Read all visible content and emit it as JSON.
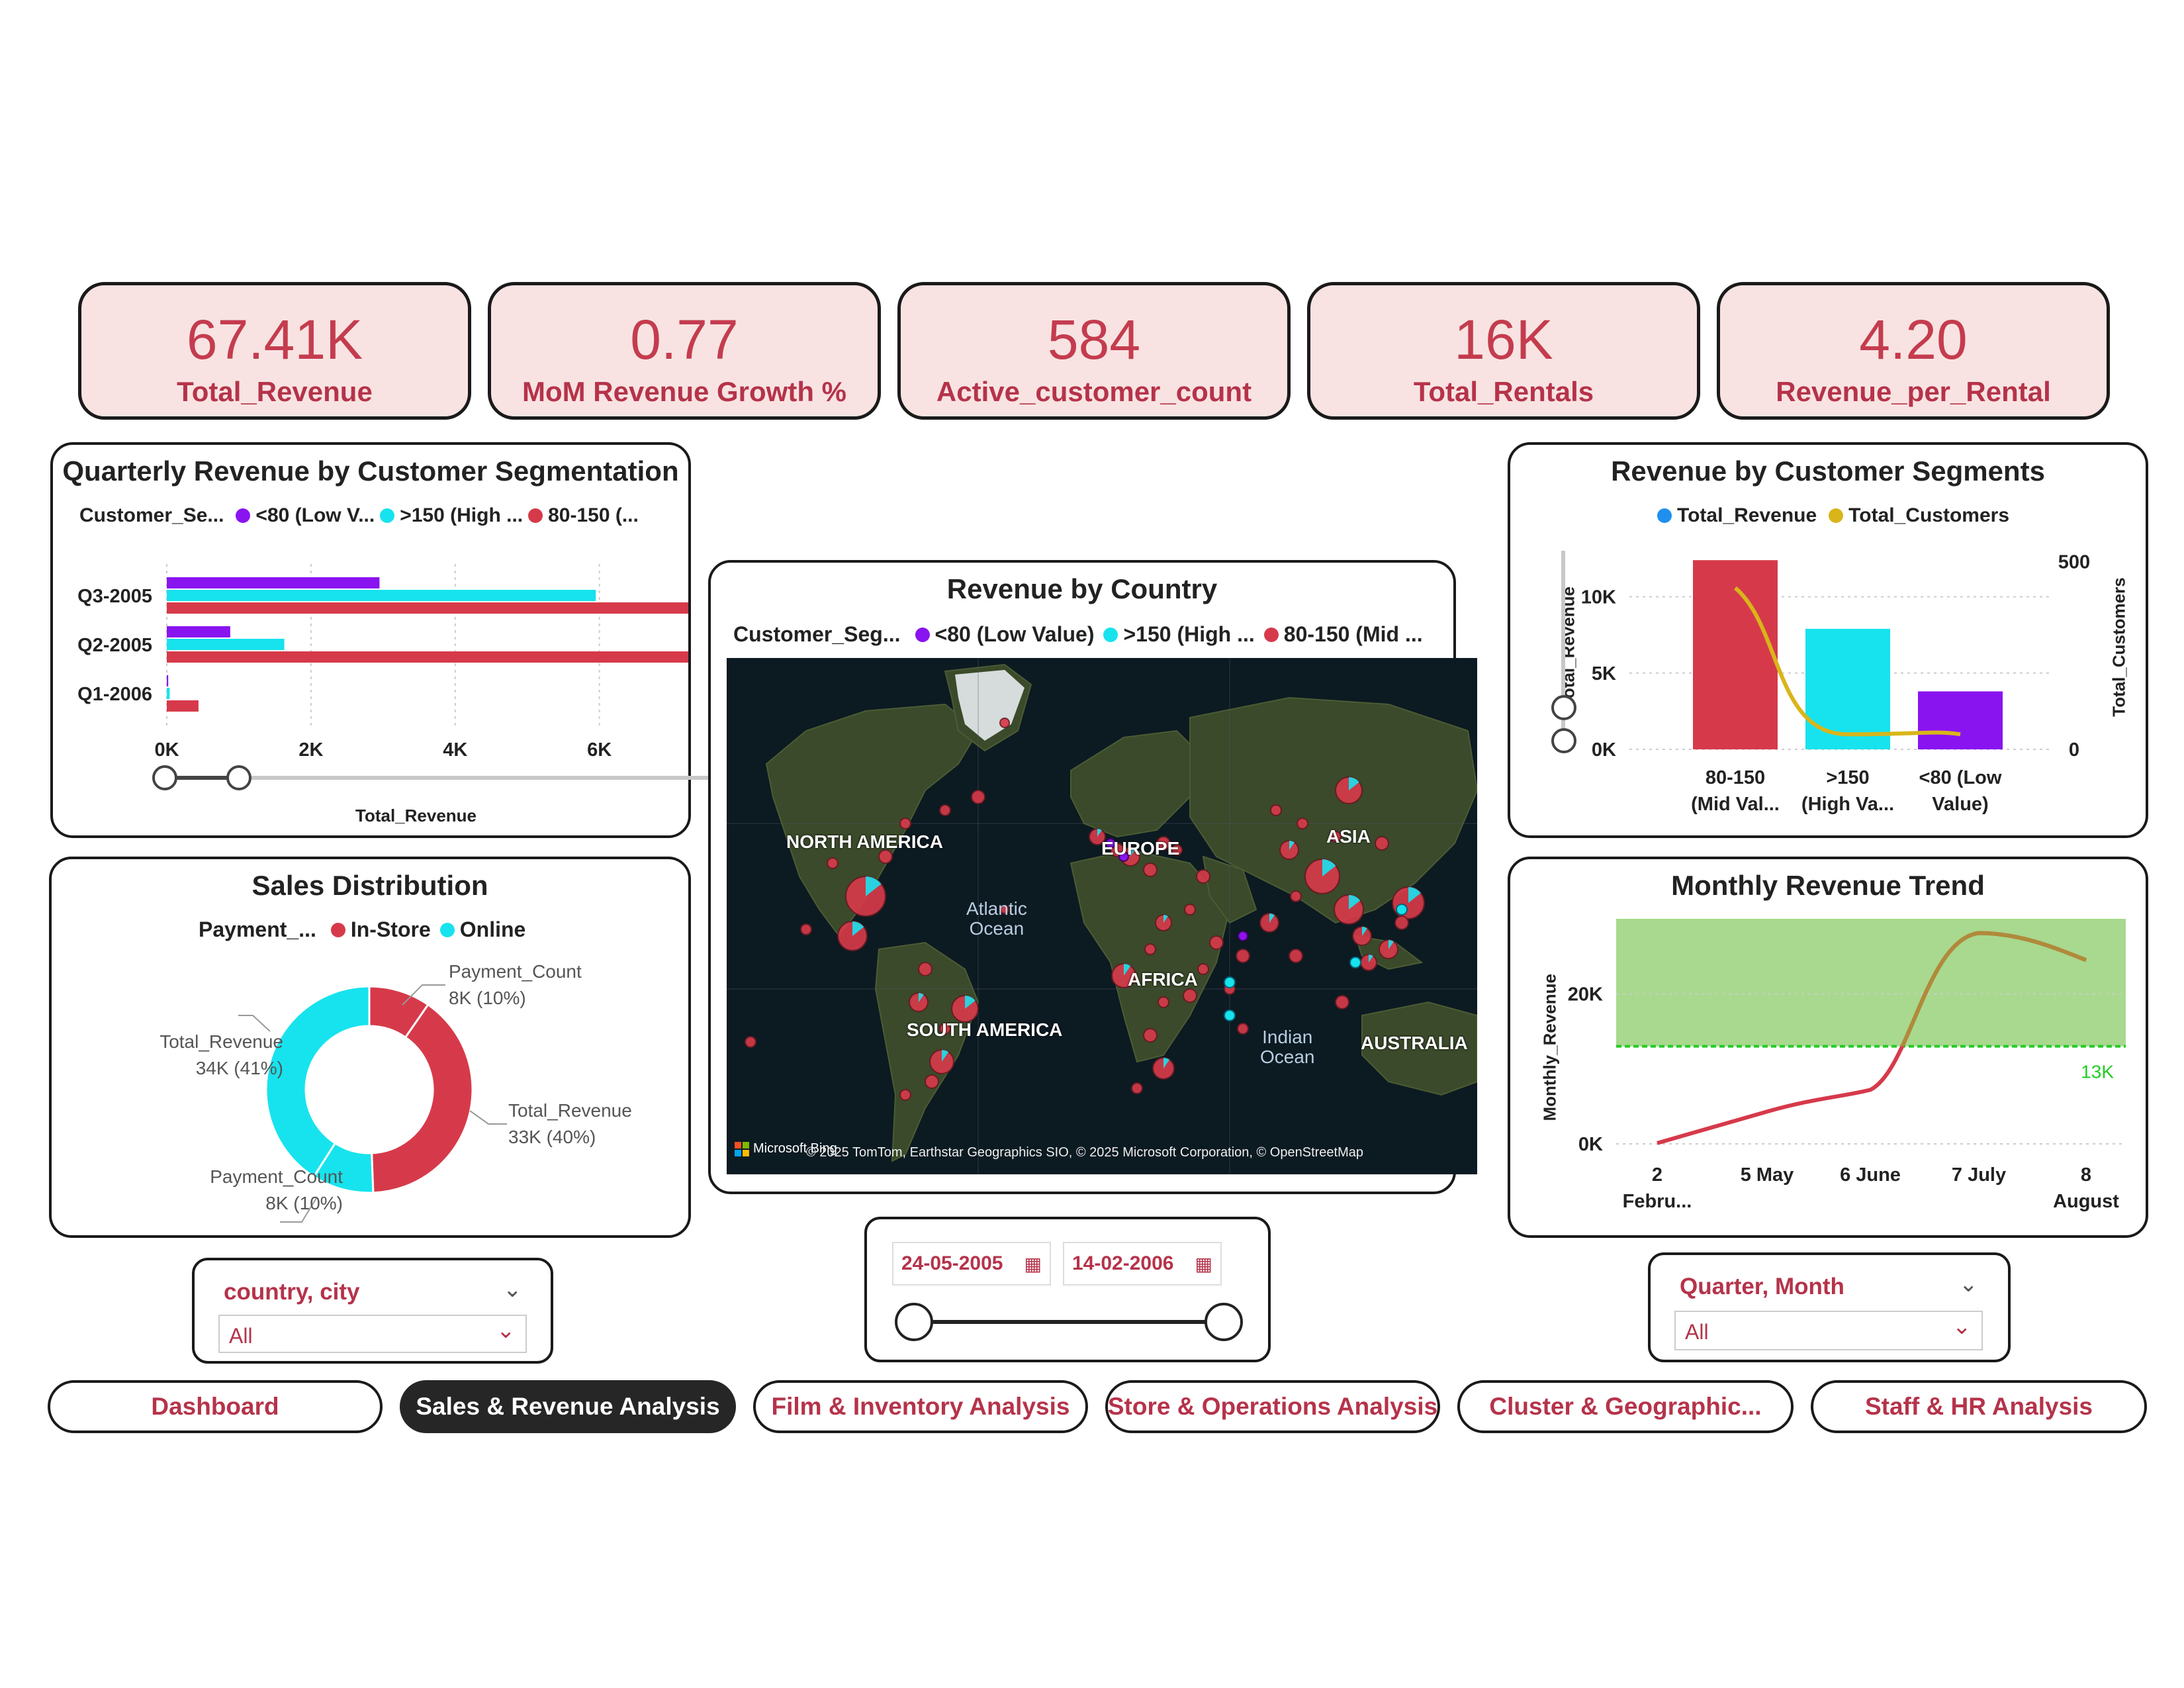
{
  "kpis": [
    {
      "value": "67.41K",
      "label": "Total_Revenue"
    },
    {
      "value": "0.77",
      "label": "MoM Revenue Growth %"
    },
    {
      "value": "584",
      "label": "Active_customer_count"
    },
    {
      "value": "16K",
      "label": "Total_Rentals"
    },
    {
      "value": "4.20",
      "label": "Revenue_per_Rental"
    }
  ],
  "colors": {
    "low": "#8a14f0",
    "high": "#17e3ee",
    "mid": "#d63a4a",
    "total_revenue": "#1f8ff0",
    "total_customers": "#d9b51a",
    "target_band": "#a8d98e",
    "target_line": "#22cc22"
  },
  "quarterly": {
    "title": "Quarterly Revenue by Customer Segmentation",
    "legend_title": "Customer_Se...",
    "legend": [
      "<80 (Low V...",
      ">150 (High ...",
      "80-150 (..."
    ],
    "x_label": "Total_Revenue",
    "chart_data": {
      "type": "bar",
      "orientation": "horizontal",
      "categories": [
        "Q3-2005",
        "Q2-2005",
        "Q1-2006"
      ],
      "series": [
        {
          "name": "<80 (Low V...",
          "values": [
            2950,
            880,
            20
          ]
        },
        {
          "name": ">150 (High ...",
          "values": [
            5950,
            1630,
            40
          ]
        },
        {
          "name": "80-150 (...",
          "values": [
            7550,
            7550,
            440
          ]
        }
      ],
      "xticks": [
        "0K",
        "2K",
        "4K",
        "6K"
      ],
      "xlim": [
        0,
        7600
      ]
    }
  },
  "sales_dist": {
    "title": "Sales Distribution",
    "legend_title": "Payment_...",
    "legend": [
      "In-Store",
      "Online"
    ],
    "chart_data": {
      "type": "pie",
      "donut": true,
      "slices": [
        {
          "name": "Payment_Count",
          "value": 8,
          "percent": 10,
          "color": "#d63a4a"
        },
        {
          "name": "Total_Revenue",
          "value": 33,
          "percent": 40,
          "color": "#d63a4a"
        },
        {
          "name": "Payment_Count",
          "value": 8,
          "percent": 10,
          "color": "#17e3ee"
        },
        {
          "name": "Total_Revenue",
          "value": 34,
          "percent": 41,
          "color": "#17e3ee"
        }
      ]
    },
    "labels": [
      {
        "name": "Payment_Count",
        "value": "8K (10%)"
      },
      {
        "name": "Total_Revenue",
        "value": "33K (40%)"
      },
      {
        "name": "Payment_Count",
        "value": "8K (10%)"
      },
      {
        "name": "Total_Revenue",
        "value": "34K (41%)"
      }
    ]
  },
  "map": {
    "title": "Revenue by Country",
    "legend_title": "Customer_Seg...",
    "legend": [
      "<80 (Low Value)",
      ">150 (High ...",
      "80-150 (Mid ..."
    ],
    "continents": [
      "NORTH AMERICA",
      "EUROPE",
      "ASIA",
      "AFRICA",
      "SOUTH AMERICA",
      "AUSTRALIA"
    ],
    "oceans": [
      "Atlantic\nOcean",
      "Indian\nOcean"
    ],
    "attribution_brand": "Microsoft Bing",
    "attribution": "© 2025 TomTom, Earthstar Geographics SIO, © 2025 Microsoft Corporation, © OpenStreetMap"
  },
  "segments": {
    "title": "Revenue by Customer Segments",
    "legend": [
      "Total_Revenue",
      "Total_Customers"
    ],
    "y_left_label": "Total_Revenue",
    "y_right_label": "Total_Customers",
    "chart_data": {
      "type": "bar",
      "categories": [
        "80-150 (Mid Val...",
        ">150 (High Va...",
        "<80 (Low Value)"
      ],
      "series": [
        {
          "name": "Total_Revenue",
          "values": [
            12400,
            7900,
            3800
          ],
          "colors": [
            "#d63a4a",
            "#17e3ee",
            "#8a14f0"
          ]
        },
        {
          "name": "Total_Customers",
          "type": "line",
          "values": [
            430,
            40,
            40
          ]
        }
      ],
      "yticks_left": [
        "0K",
        "5K",
        "10K"
      ],
      "ylim_left": [
        0,
        12800
      ],
      "yticks_right": [
        "0",
        "500"
      ],
      "ylim_right": [
        0,
        520
      ]
    },
    "cat_lines": [
      [
        "80-150",
        "(Mid Val..."
      ],
      [
        ">150",
        "(High Va..."
      ],
      [
        "<80 (Low",
        "Value)"
      ]
    ]
  },
  "monthly": {
    "title": "Monthly Revenue Trend",
    "y_label": "Monthly_Revenue",
    "target_label": "13K",
    "chart_data": {
      "type": "line",
      "x": [
        "2 Febru...",
        "5 May",
        "6 June",
        "7 July",
        "8 August"
      ],
      "y": [
        100,
        4300,
        7200,
        28100,
        24500
      ],
      "yticks": [
        "0K",
        "20K"
      ],
      "ylim": [
        0,
        30000
      ],
      "target": 13000
    },
    "x_lines": [
      [
        "2",
        "Febru..."
      ],
      [
        "5 May",
        ""
      ],
      [
        "6 June",
        ""
      ],
      [
        "7 July",
        ""
      ],
      [
        "8",
        "August"
      ]
    ]
  },
  "filters": {
    "country": {
      "label": "country, city",
      "value": "All"
    },
    "dates": {
      "start": "24-05-2005",
      "end": "14-02-2006"
    },
    "quarter": {
      "label": "Quarter, Month",
      "value": "All"
    }
  },
  "nav": [
    {
      "label": "Dashboard",
      "active": false
    },
    {
      "label": "Sales & Revenue Analysis",
      "active": true
    },
    {
      "label": "Film & Inventory Analysis",
      "active": false
    },
    {
      "label": "Store & Operations Analysis",
      "active": false
    },
    {
      "label": "Cluster & Geographic...",
      "active": false
    },
    {
      "label": "Staff & HR Analysis",
      "active": false
    }
  ]
}
